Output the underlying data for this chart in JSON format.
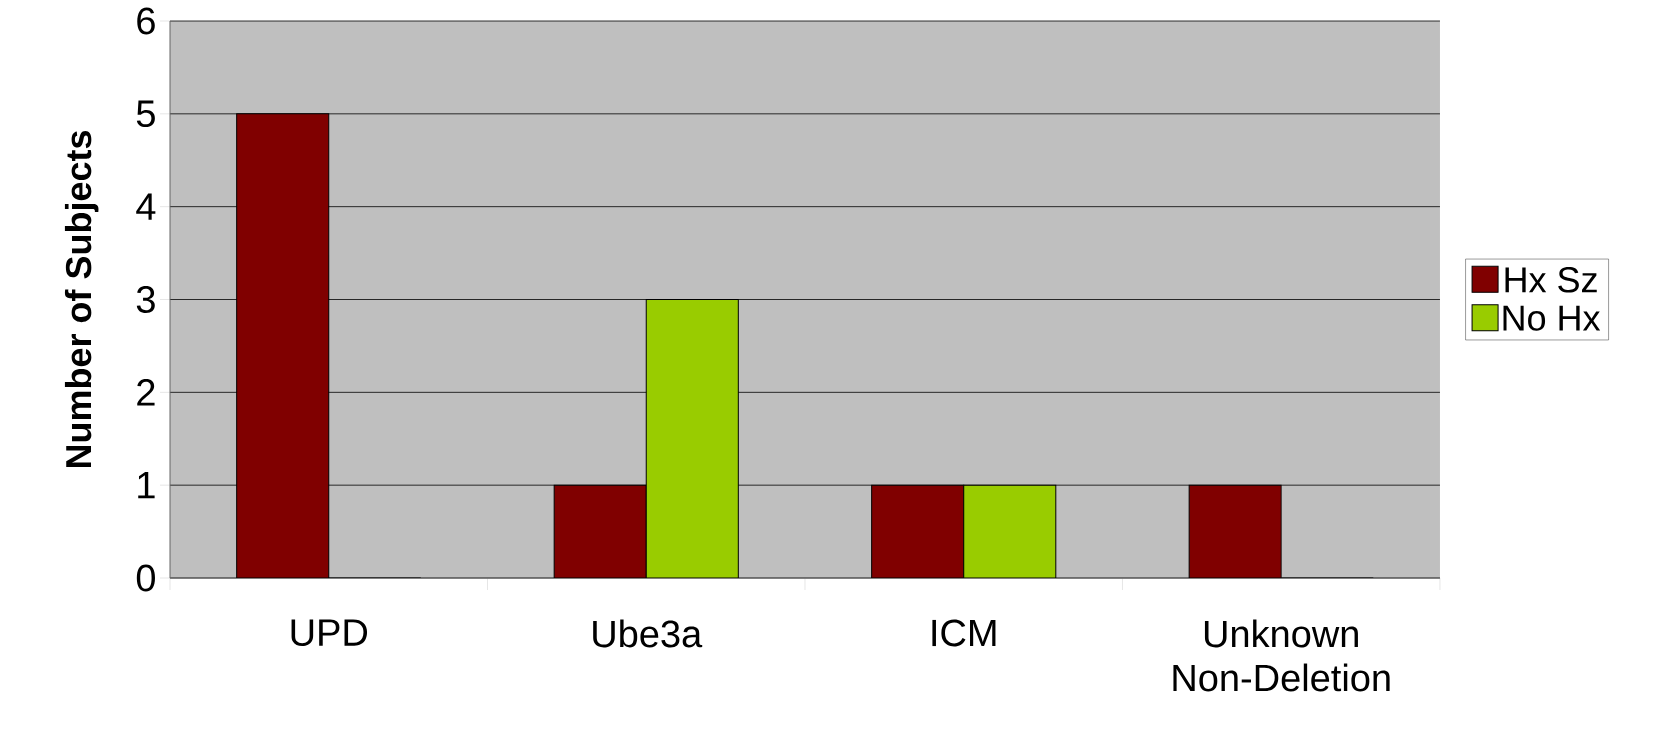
{
  "chart_data": {
    "type": "bar",
    "ylabel": "Number of Subjects",
    "categories": [
      "UPD",
      "Ube3a",
      "ICM",
      "Unknown Non-Deletion"
    ],
    "series": [
      {
        "name": "Hx Sz",
        "color": "#800000",
        "values": [
          5,
          1,
          1,
          1
        ]
      },
      {
        "name": "No Hx",
        "color": "#99cc00",
        "values": [
          0,
          3,
          1,
          0
        ]
      }
    ],
    "ylim": [
      0,
      6
    ],
    "yticks": [
      0,
      1,
      2,
      3,
      4,
      5,
      6
    ],
    "grid": "y",
    "legend": "right"
  }
}
